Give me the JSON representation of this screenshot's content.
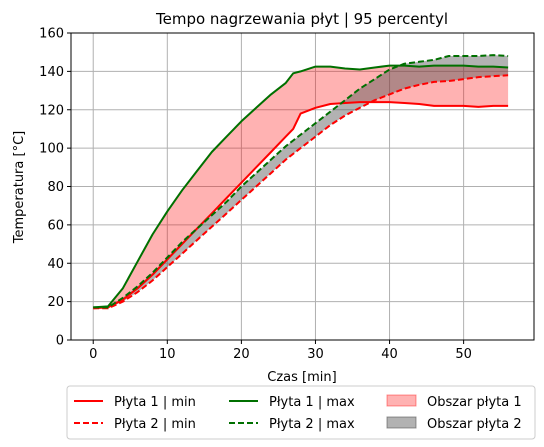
{
  "chart_data": {
    "type": "line",
    "title": "Tempo nagrzewania płyt | 95 percentyl",
    "xlabel": "Czas [min]",
    "ylabel": "Temperatura [°C]",
    "xlim": [
      -3,
      59.5
    ],
    "ylim": [
      0,
      160
    ],
    "xticks": [
      0,
      10,
      20,
      30,
      40,
      50
    ],
    "yticks": [
      0,
      20,
      40,
      60,
      80,
      100,
      120,
      140,
      160
    ],
    "grid": true,
    "legend_position": "below",
    "series": [
      {
        "name": "Płyta 1 | min",
        "color": "#ff0000",
        "style": "solid",
        "x": [
          0,
          2,
          4,
          6,
          8,
          10,
          12,
          14,
          16,
          18,
          20,
          22,
          24,
          26,
          27,
          28,
          30,
          32,
          34,
          36,
          38,
          40,
          42,
          44,
          46,
          48,
          50,
          52,
          54,
          56
        ],
        "y": [
          16.5,
          17,
          21,
          27,
          34,
          42,
          50,
          58,
          66,
          74,
          82,
          90,
          98,
          106,
          110,
          118,
          121,
          123,
          123.5,
          124,
          124,
          124,
          123.5,
          123,
          122,
          122,
          122,
          121.5,
          122,
          122
        ]
      },
      {
        "name": "Płyta 1 | max",
        "color": "#007000",
        "style": "solid",
        "x": [
          0,
          2,
          4,
          6,
          8,
          10,
          12,
          14,
          16,
          18,
          20,
          22,
          24,
          26,
          27,
          28,
          30,
          32,
          34,
          36,
          38,
          40,
          42,
          44,
          46,
          48,
          50,
          52,
          54,
          56
        ],
        "y": [
          17,
          17.5,
          27,
          41,
          55,
          67,
          78,
          88,
          98,
          106,
          114,
          121,
          128,
          134,
          139,
          140,
          142.5,
          142.5,
          141.5,
          141,
          142,
          143,
          143,
          142.5,
          143,
          143,
          143,
          142.5,
          142.5,
          142
        ]
      },
      {
        "name": "Płyta 2 | min",
        "color": "#ff0000",
        "style": "dashed",
        "x": [
          0,
          2,
          4,
          6,
          8,
          10,
          12,
          14,
          16,
          18,
          20,
          22,
          24,
          26,
          28,
          30,
          32,
          34,
          36,
          38,
          40,
          42,
          44,
          46,
          48,
          50,
          52,
          54,
          56
        ],
        "y": [
          16.5,
          16.5,
          20,
          25,
          31,
          38,
          45,
          52,
          59,
          66,
          73,
          80,
          87,
          94,
          100,
          106,
          112,
          117,
          121,
          125,
          128,
          131,
          133,
          134.5,
          135,
          136,
          137,
          137.5,
          138
        ]
      },
      {
        "name": "Płyta 2 | max",
        "color": "#007000",
        "style": "dashed",
        "x": [
          0,
          2,
          4,
          6,
          8,
          10,
          12,
          14,
          16,
          18,
          20,
          22,
          24,
          26,
          28,
          30,
          32,
          34,
          36,
          38,
          40,
          42,
          44,
          46,
          48,
          50,
          52,
          54,
          56
        ],
        "y": [
          17,
          17,
          22,
          28,
          35,
          43,
          51,
          58,
          65,
          72,
          80,
          87,
          94,
          101,
          107,
          113,
          119,
          125,
          131,
          136,
          141,
          144,
          145,
          146,
          148,
          148,
          148,
          148.5,
          148
        ]
      }
    ],
    "areas": [
      {
        "name": "Obszar płyta 1",
        "color": "#ff0000",
        "opacity": 0.3,
        "between": [
          0,
          1
        ]
      },
      {
        "name": "Obszar płyta 2",
        "color": "#555555",
        "opacity": 0.45,
        "between": [
          2,
          3
        ]
      }
    ]
  }
}
